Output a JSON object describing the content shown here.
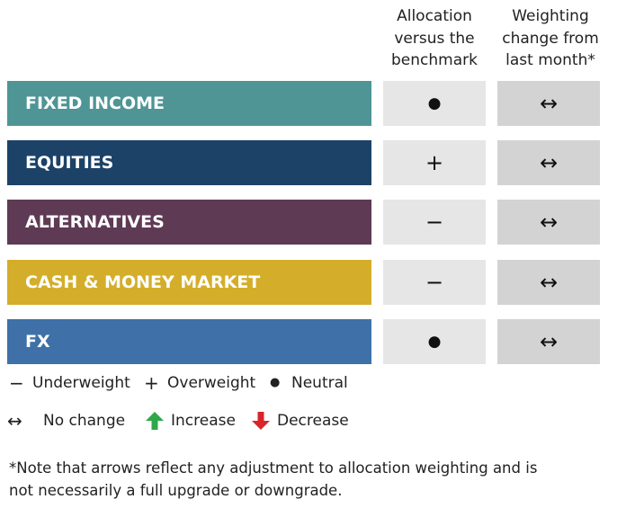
{
  "header": {
    "allocation": [
      "Allocation",
      "versus the",
      "benchmark"
    ],
    "change": [
      "Weighting",
      "change from",
      "last month*"
    ]
  },
  "rows": [
    {
      "label": "FIXED INCOME",
      "color": "#4f9596",
      "allocation": "●",
      "change": "↔"
    },
    {
      "label": "EQUITIES",
      "color": "#1d4268",
      "allocation": "+",
      "change": "↔"
    },
    {
      "label": "ALTERNATIVES",
      "color": "#5e3a55",
      "allocation": "−",
      "change": "↔"
    },
    {
      "label": "CASH & MONEY MARKET",
      "color": "#d4ae2a",
      "allocation": "−",
      "change": "↔"
    },
    {
      "label": "FX",
      "color": "#3f71a8",
      "allocation": "●",
      "change": "↔"
    }
  ],
  "legend": [
    {
      "symbol": "−",
      "label": "Underweight"
    },
    {
      "symbol": "+",
      "label": "Overweight"
    },
    {
      "symbol": "●",
      "label": "Neutral"
    },
    {
      "symbol": "↔",
      "label": "No change"
    },
    {
      "label": "Increase"
    },
    {
      "label": "Decrease"
    }
  ],
  "note": [
    "*Note that arrows reflect any adjustment to allocation weighting and is",
    "not necessarily a full upgrade or downgrade."
  ]
}
